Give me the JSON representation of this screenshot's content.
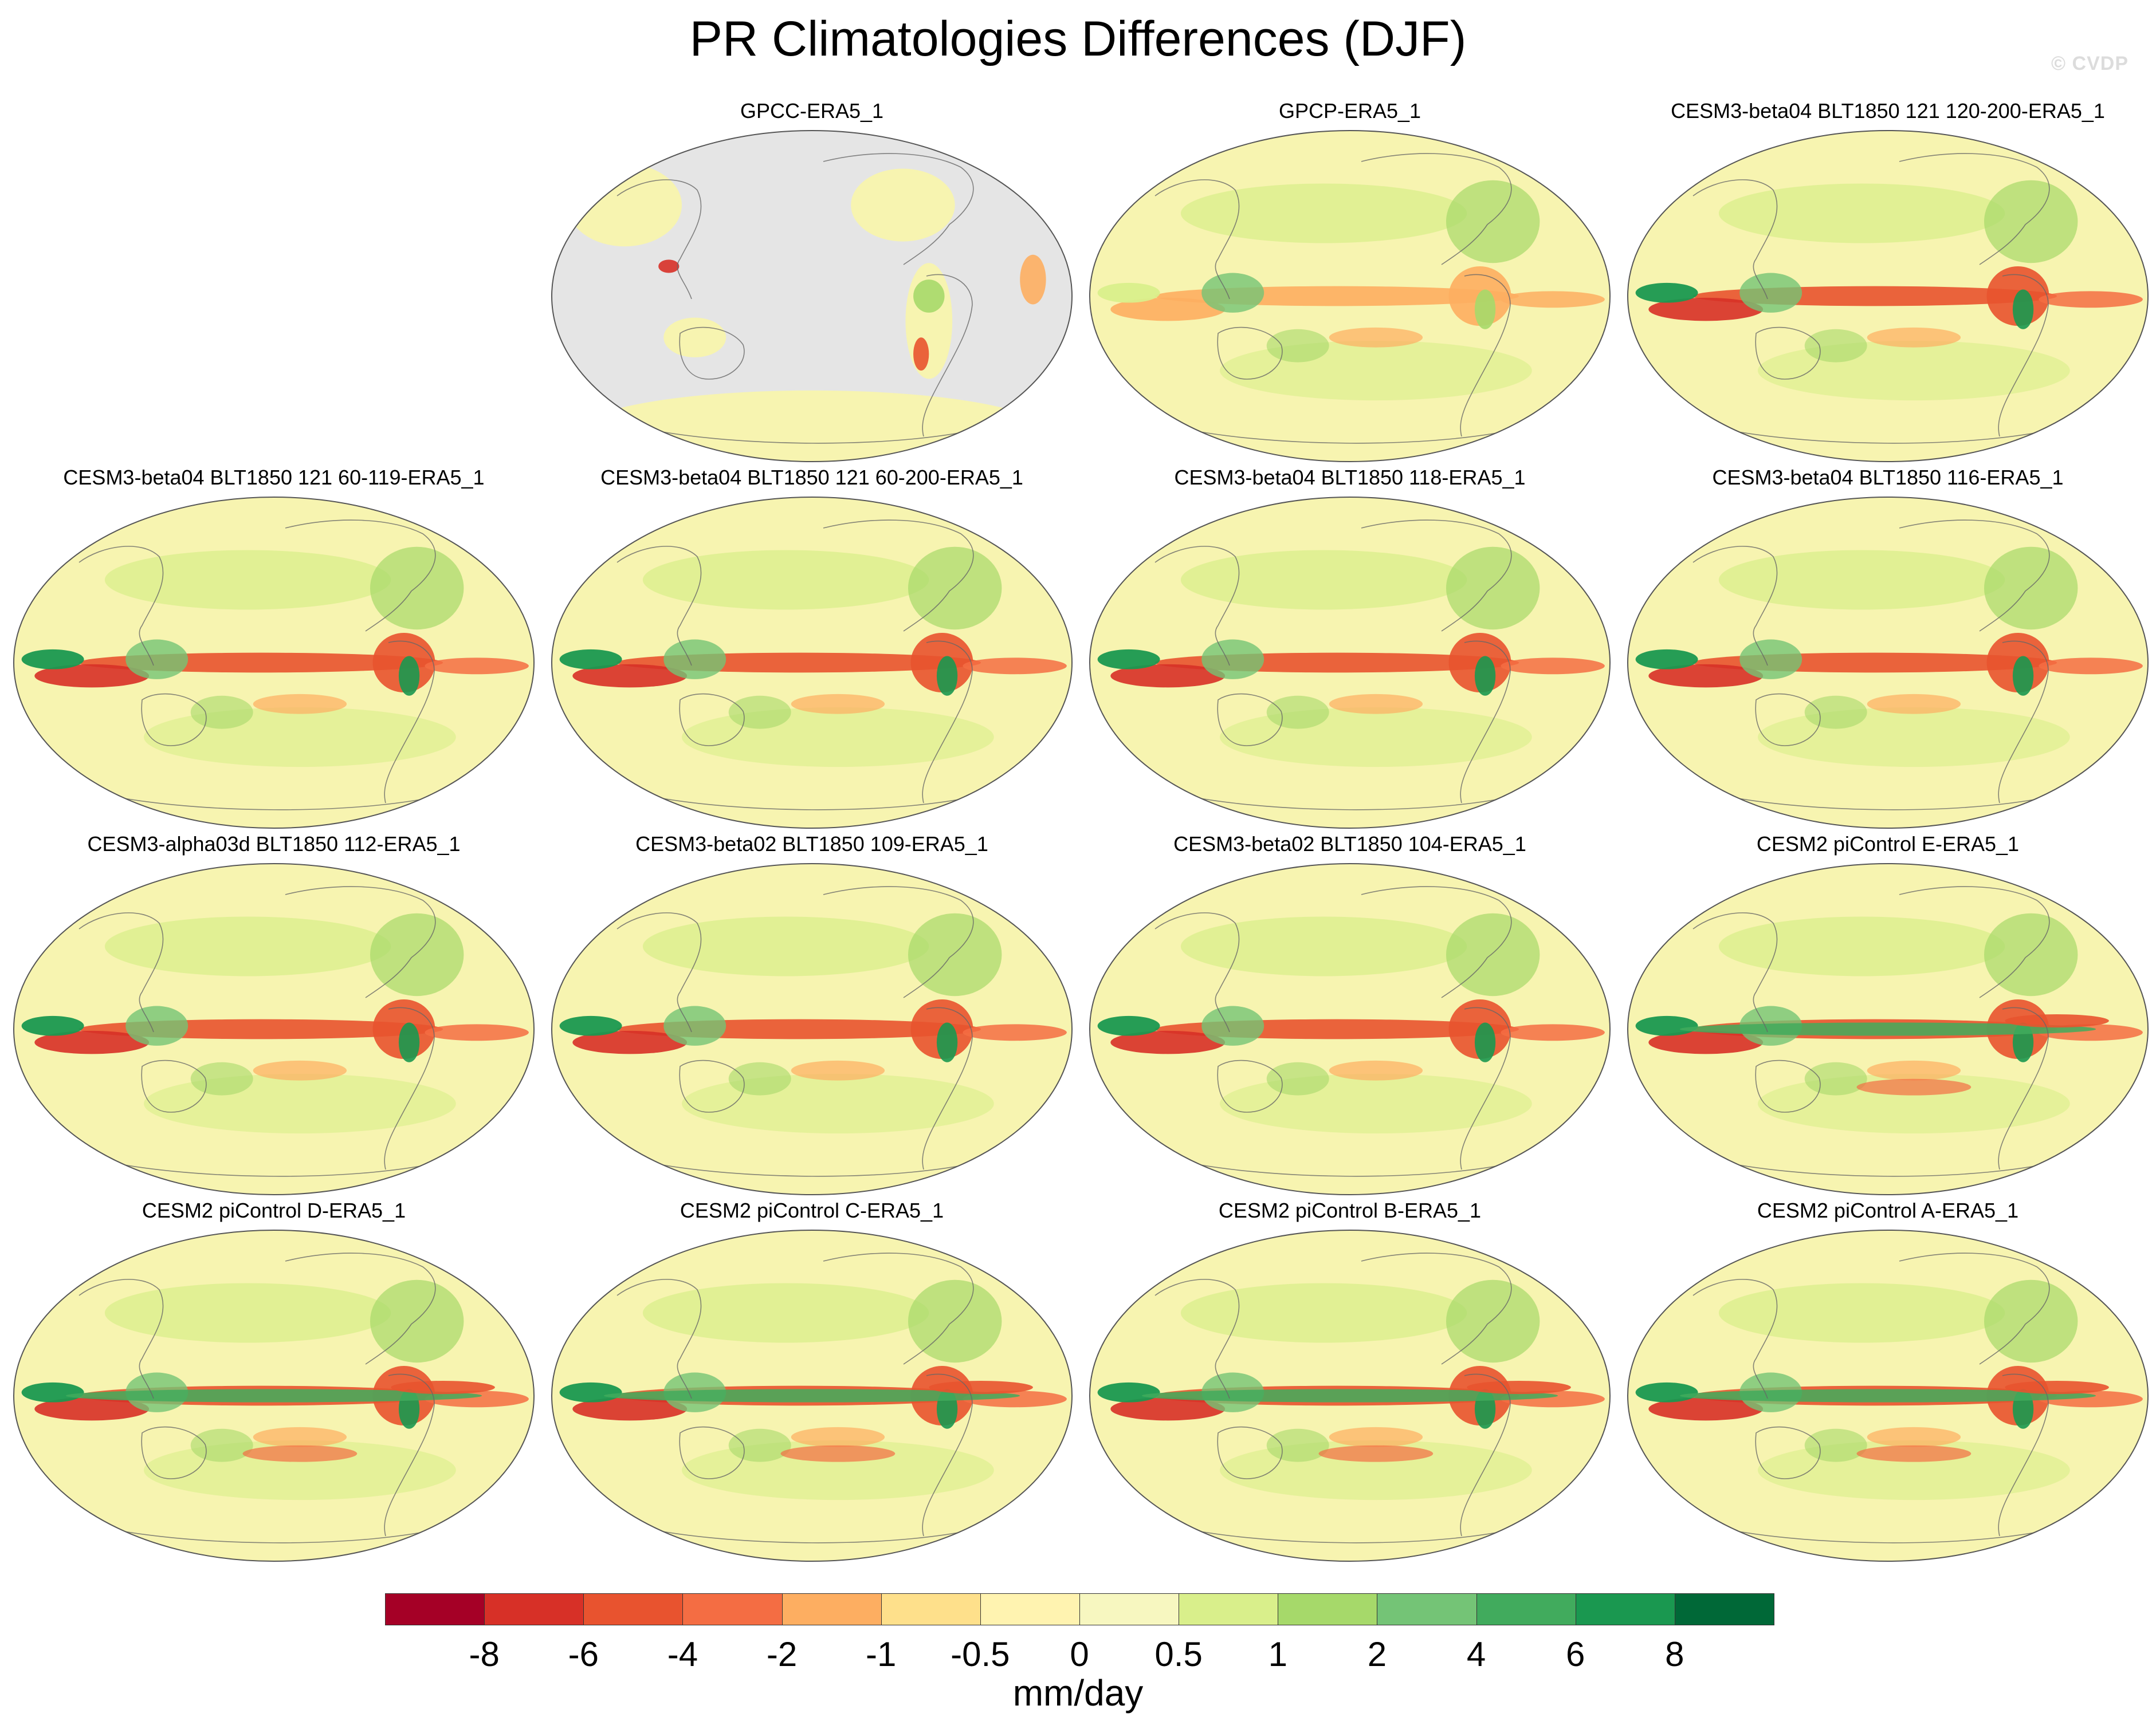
{
  "title": "PR Climatologies Differences (DJF)",
  "watermark": "© CVDP",
  "panels": [
    {
      "label": "GPCC-ERA5_1",
      "style": "land"
    },
    {
      "label": "GPCP-ERA5_1",
      "style": "obs"
    },
    {
      "label": "CESM3-beta04 BLT1850 121 120-200-ERA5_1",
      "style": "model"
    },
    {
      "label": "CESM3-beta04 BLT1850 121 60-119-ERA5_1",
      "style": "model"
    },
    {
      "label": "CESM3-beta04 BLT1850 121 60-200-ERA5_1",
      "style": "model"
    },
    {
      "label": "CESM3-beta04 BLT1850 118-ERA5_1",
      "style": "model"
    },
    {
      "label": "CESM3-beta04 BLT1850 116-ERA5_1",
      "style": "model"
    },
    {
      "label": "CESM3-alpha03d BLT1850 112-ERA5_1",
      "style": "model"
    },
    {
      "label": "CESM3-beta02 BLT1850 109-ERA5_1",
      "style": "model"
    },
    {
      "label": "CESM3-beta02 BLT1850 104-ERA5_1",
      "style": "model"
    },
    {
      "label": "CESM2 piControl E-ERA5_1",
      "style": "cesm2"
    },
    {
      "label": "CESM2 piControl D-ERA5_1",
      "style": "cesm2"
    },
    {
      "label": "CESM2 piControl C-ERA5_1",
      "style": "cesm2"
    },
    {
      "label": "CESM2 piControl B-ERA5_1",
      "style": "cesm2"
    },
    {
      "label": "CESM2 piControl A-ERA5_1",
      "style": "cesm2"
    }
  ],
  "colorbar": {
    "colors": [
      "#a50026",
      "#d73027",
      "#e8532f",
      "#f46d43",
      "#fdae61",
      "#fee08b",
      "#fff3b0",
      "#f7f7c0",
      "#d9ef8b",
      "#a6d96a",
      "#74c476",
      "#41ab5d",
      "#1a9850",
      "#006837"
    ],
    "ticks": [
      "-8",
      "-6",
      "-4",
      "-2",
      "-1",
      "-0.5",
      "0",
      "0.5",
      "1",
      "2",
      "4",
      "6",
      "8"
    ],
    "units": "mm/day"
  },
  "ocean_color": "#e5e5e5",
  "background_field_color": "#f7f4b0"
}
